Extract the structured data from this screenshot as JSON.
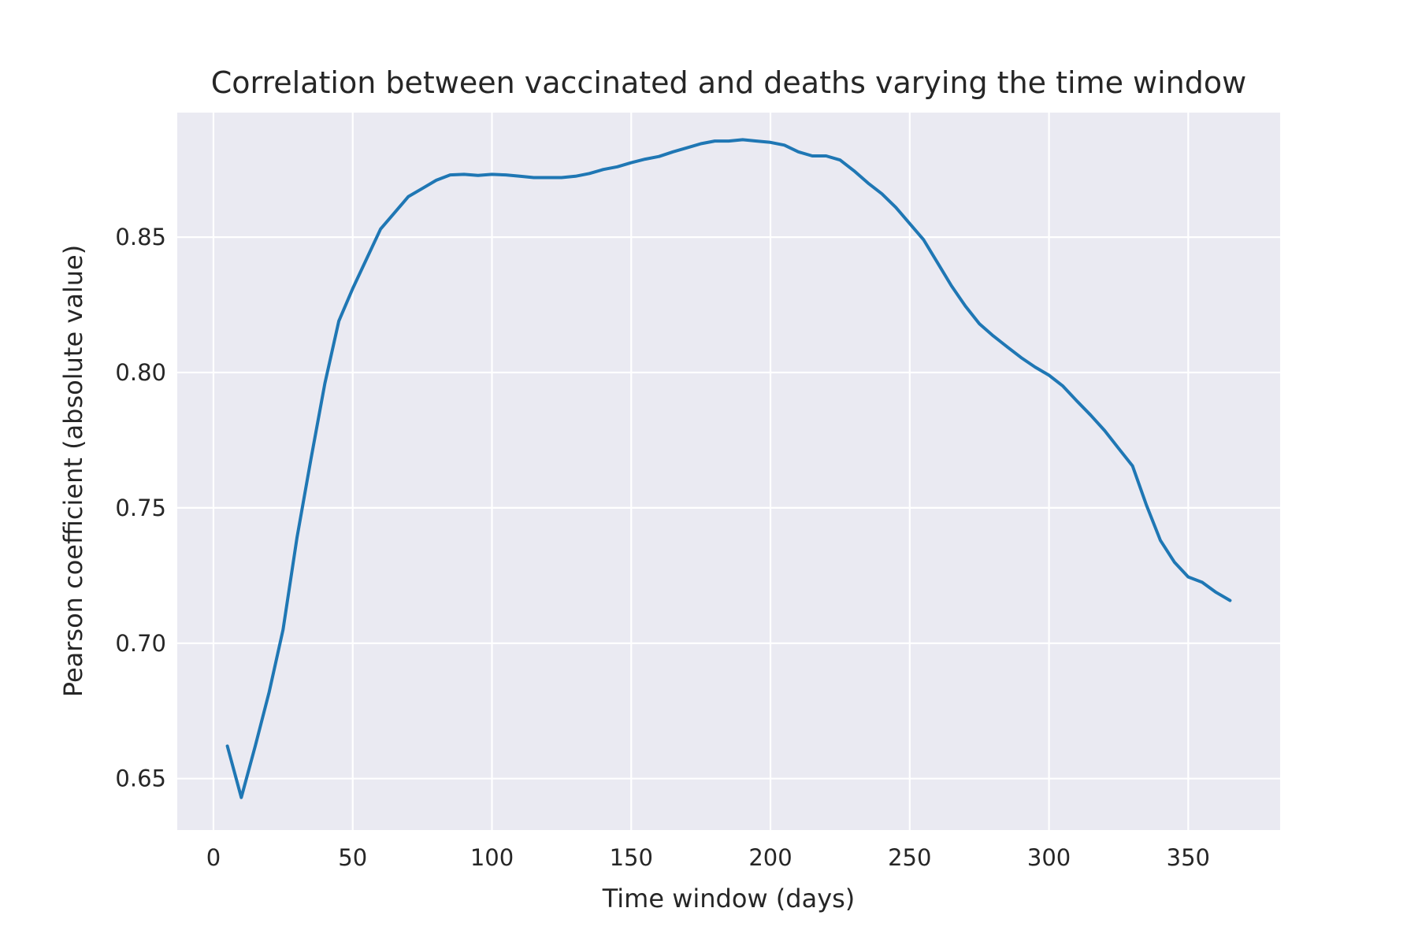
{
  "chart_data": {
    "type": "line",
    "title": "Correlation between vaccinated and deaths varying the time window",
    "xlabel": "Time window (days)",
    "ylabel": "Pearson coefficient (absolute value)",
    "xlim": [
      -13,
      383
    ],
    "ylim": [
      0.631,
      0.896
    ],
    "xticks": [
      0,
      50,
      100,
      150,
      200,
      250,
      300,
      350
    ],
    "yticks": [
      0.65,
      0.7,
      0.75,
      0.8,
      0.85
    ],
    "ytick_labels": [
      "0.65",
      "0.70",
      "0.75",
      "0.80",
      "0.85"
    ],
    "grid": true,
    "colors": {
      "background": "#eaeaf2",
      "grid": "#ffffff",
      "line": "#1f77b4"
    },
    "series": [
      {
        "color": "#1f77b4",
        "x": [
          5,
          10,
          15,
          20,
          25,
          30,
          35,
          40,
          45,
          50,
          55,
          60,
          65,
          70,
          75,
          80,
          85,
          90,
          95,
          100,
          105,
          110,
          115,
          120,
          125,
          130,
          135,
          140,
          145,
          150,
          155,
          160,
          165,
          170,
          175,
          180,
          185,
          190,
          195,
          200,
          205,
          210,
          215,
          220,
          225,
          230,
          235,
          240,
          245,
          250,
          255,
          260,
          265,
          270,
          275,
          280,
          285,
          290,
          295,
          300,
          305,
          310,
          315,
          320,
          325,
          330,
          335,
          340,
          345,
          350,
          355,
          360,
          365
        ],
        "y": [
          0.662,
          0.643,
          0.662,
          0.682,
          0.705,
          0.739,
          0.768,
          0.796,
          0.819,
          0.831,
          0.842,
          0.853,
          0.859,
          0.865,
          0.868,
          0.871,
          0.873,
          0.8732,
          0.8728,
          0.8732,
          0.873,
          0.8725,
          0.872,
          0.872,
          0.872,
          0.8725,
          0.8735,
          0.875,
          0.876,
          0.8775,
          0.8788,
          0.8798,
          0.8815,
          0.883,
          0.8845,
          0.8855,
          0.8855,
          0.886,
          0.8855,
          0.885,
          0.884,
          0.8815,
          0.88,
          0.88,
          0.8785,
          0.8745,
          0.87,
          0.866,
          0.861,
          0.855,
          0.849,
          0.8405,
          0.832,
          0.8245,
          0.818,
          0.8135,
          0.8095,
          0.8055,
          0.802,
          0.799,
          0.795,
          0.7895,
          0.7842,
          0.7785,
          0.772,
          0.7655,
          0.751,
          0.738,
          0.73,
          0.7245,
          0.7225,
          0.7188,
          0.7158
        ]
      }
    ]
  }
}
